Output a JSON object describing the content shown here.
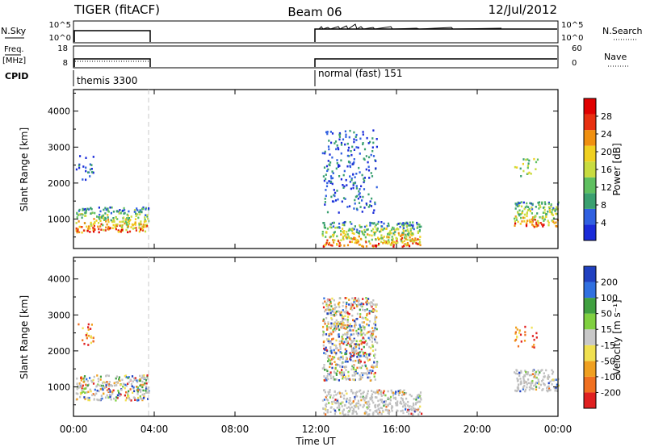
{
  "header": {
    "radar": "TIGER (fitACF)",
    "beam": "Beam 06",
    "date": "12/Jul/2012"
  },
  "status_panels": {
    "nsky_label": "N.Sky",
    "nsky_ticks": [
      "10^5",
      "10^0"
    ],
    "nsearch_label": "N.Search",
    "nsearch_ticks": [
      "10^5",
      "10^0"
    ],
    "freq_label_top": "Freq.",
    "freq_label_bottom": "[MHz]",
    "freq_ticks": [
      "18",
      "8"
    ],
    "nave_label": "Nave",
    "nave_ticks": [
      "60",
      "0"
    ],
    "cpid_label": "CPID",
    "cpid_modes": [
      {
        "name": "themis 3300",
        "start_hour": 0.0,
        "end_hour": 3.7
      },
      {
        "name": "normal (fast) 151",
        "start_hour": 12.0,
        "end_hour": 24.0
      }
    ]
  },
  "x_axis": {
    "label": "Time UT",
    "ticks": [
      "00:00",
      "04:00",
      "08:00",
      "12:00",
      "16:00",
      "20:00",
      "00:00"
    ],
    "range_hours": [
      0,
      24
    ]
  },
  "colors": {
    "power": [
      "#1a2bd9",
      "#3060e0",
      "#3aa070",
      "#5fc060",
      "#c8dc40",
      "#f0d020",
      "#f09010",
      "#e83010",
      "#e00000"
    ],
    "velocity": [
      "#2040c0",
      "#3070e0",
      "#40a040",
      "#80d040",
      "#c8c8c8",
      "#f0e050",
      "#f0a020",
      "#f07020",
      "#e02020"
    ],
    "ground_scatter": "#c0c0c0",
    "frame": "#000000"
  },
  "chart_data": [
    {
      "type": "heatmap",
      "name": "power",
      "ylabel": "Slant Range [km]",
      "yticks": [
        "1000",
        "2000",
        "3000",
        "4000"
      ],
      "ylim": [
        180,
        4600
      ],
      "xlim_hours": [
        0,
        24
      ],
      "colorbar_label": "Power [dB]",
      "colorbar_ticks": [
        "4",
        "8",
        "12",
        "16",
        "20",
        "24",
        "28"
      ],
      "regions": [
        {
          "t0": 0.1,
          "t1": 3.7,
          "r0": 650,
          "r1": 1350,
          "peak": "high"
        },
        {
          "t0": 0.1,
          "t1": 1.0,
          "r0": 2100,
          "r1": 2800,
          "peak": "low"
        },
        {
          "t0": 12.3,
          "t1": 17.2,
          "r0": 250,
          "r1": 950,
          "peak": "high"
        },
        {
          "t0": 12.3,
          "t1": 15.0,
          "r0": 1200,
          "r1": 3500,
          "peak": "low"
        },
        {
          "t0": 21.8,
          "t1": 24.0,
          "r0": 800,
          "r1": 1500,
          "peak": "high"
        },
        {
          "t0": 21.8,
          "t1": 23.0,
          "r0": 2200,
          "r1": 2700,
          "peak": "mid"
        }
      ]
    },
    {
      "type": "heatmap",
      "name": "velocity",
      "ylabel": "Slant Range [km]",
      "yticks": [
        "1000",
        "2000",
        "3000",
        "4000"
      ],
      "ylim": [
        180,
        4600
      ],
      "xlim_hours": [
        0,
        24
      ],
      "colorbar_label": "Velocity [m s⁻¹]",
      "colorbar_ticks": [
        "200",
        "100",
        "50",
        "15",
        "-15",
        "-50",
        "-100",
        "-200"
      ],
      "regions": [
        {
          "t0": 0.1,
          "t1": 3.7,
          "r0": 650,
          "r1": 1350,
          "peak": "mixed"
        },
        {
          "t0": 0.1,
          "t1": 1.0,
          "r0": 2100,
          "r1": 2800,
          "peak": "neg"
        },
        {
          "t0": 12.3,
          "t1": 17.2,
          "r0": 250,
          "r1": 950,
          "peak": "ground"
        },
        {
          "t0": 12.3,
          "t1": 15.0,
          "r0": 1200,
          "r1": 3500,
          "peak": "mixed"
        },
        {
          "t0": 21.8,
          "t1": 24.0,
          "r0": 900,
          "r1": 1500,
          "peak": "ground"
        },
        {
          "t0": 21.8,
          "t1": 23.0,
          "r0": 2100,
          "r1": 2700,
          "peak": "neg"
        }
      ]
    }
  ]
}
